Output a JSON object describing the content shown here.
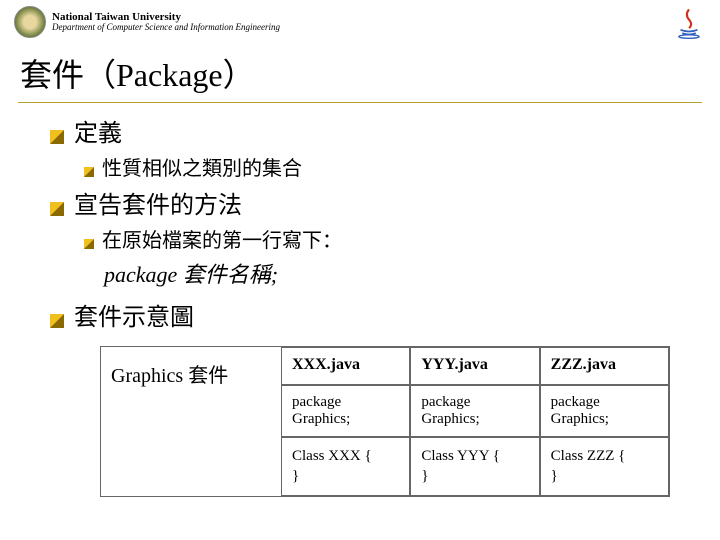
{
  "header": {
    "university": "National Taiwan University",
    "department": "Department of Computer Science and Information Engineering"
  },
  "title": "套件（Package）",
  "bullets": {
    "b1": "定義",
    "b1_1": "性質相似之類別的集合",
    "b2": "宣告套件的方法",
    "b2_1": "在原始檔案的第一行寫下：",
    "code": "package 套件名稱;",
    "b3": "套件示意圖"
  },
  "diagram": {
    "label": "Graphics 套件",
    "cols": [
      {
        "file": "XXX.java",
        "pkg": "package Graphics;",
        "cls": "Class XXX {\n}"
      },
      {
        "file": "YYY.java",
        "pkg": "package Graphics;",
        "cls": "Class YYY {\n}"
      },
      {
        "file": "ZZZ.java",
        "pkg": "package Graphics;",
        "cls": "Class ZZZ {\n}"
      }
    ]
  },
  "colors": {
    "bullet_tl": "#f0c020",
    "bullet_br": "#8a6a00",
    "divider": "#b8a030"
  }
}
